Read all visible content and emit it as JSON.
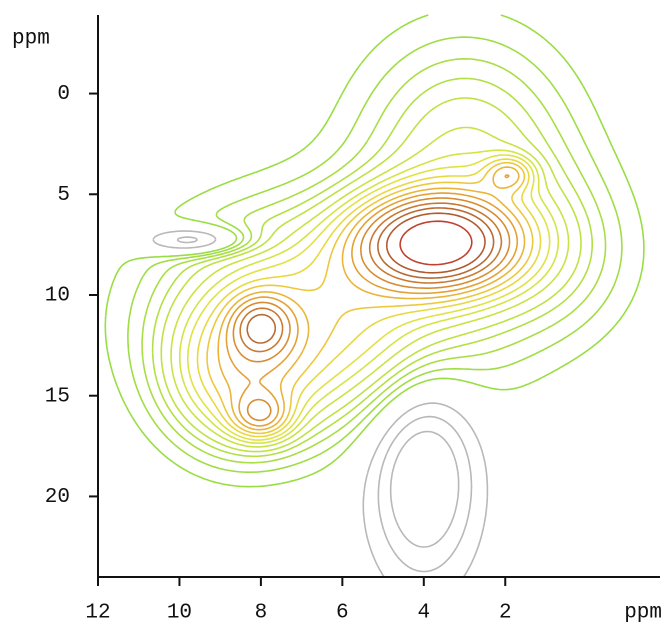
{
  "chart_data": {
    "type": "contour",
    "x_label": "ppm",
    "y_label": "ppm",
    "xlim": [
      12,
      -1.8
    ],
    "ylim": [
      -3.9,
      24
    ],
    "xticks": [
      12,
      10,
      8,
      6,
      4,
      2
    ],
    "yticks": [
      0,
      5,
      10,
      15,
      20
    ],
    "peaks": [
      {
        "x": 3.7,
        "y": 7.4,
        "sx": 1.3,
        "sy": 1.6,
        "amp": 0.9
      },
      {
        "x": 8.0,
        "y": 11.5,
        "sx": 0.5,
        "sy": 1.0,
        "amp": 0.35
      },
      {
        "x": 8.0,
        "y": 16.0,
        "sx": 0.5,
        "sy": 0.8,
        "amp": 0.3
      },
      {
        "x": 1.9,
        "y": 4.0,
        "sx": 0.4,
        "sy": 0.6,
        "amp": 0.25
      },
      {
        "x": 6.5,
        "y": 11.0,
        "sx": 2.5,
        "sy": 3.5,
        "amp": 0.35
      },
      {
        "x": 3.0,
        "y": 3.0,
        "sx": 1.8,
        "sy": 4.0,
        "amp": 0.2
      },
      {
        "x": 1.0,
        "y": 8.0,
        "sx": 1.5,
        "sy": 3.0,
        "amp": 0.12
      },
      {
        "x": 8.5,
        "y": 14.0,
        "sx": 1.2,
        "sy": 2.5,
        "amp": 0.3
      },
      {
        "x": 4.0,
        "y": 19.0,
        "sx": 0.9,
        "sy": 3.5,
        "amp": -0.25
      },
      {
        "x": 9.6,
        "y": 7.3,
        "sx": 0.9,
        "sy": 0.5,
        "amp": -0.2
      }
    ],
    "levels": [
      -0.15,
      -0.1,
      -0.05,
      0.04,
      0.07,
      0.1,
      0.13,
      0.16,
      0.2,
      0.24,
      0.28,
      0.33,
      0.38,
      0.44,
      0.5,
      0.57,
      0.65,
      0.73,
      0.82,
      0.95
    ],
    "level_colors": [
      "#b8b8b8",
      "#b8b8b8",
      "#b8b8b8",
      "#99dd44",
      "#9fdd44",
      "#a8de44",
      "#b2e044",
      "#bde244",
      "#c8e344",
      "#d4e444",
      "#e0e244",
      "#e8d840",
      "#ecc83c",
      "#eab438",
      "#e4a034",
      "#d88c32",
      "#c87a32",
      "#b86a32",
      "#b05a30",
      "#c04030"
    ]
  }
}
